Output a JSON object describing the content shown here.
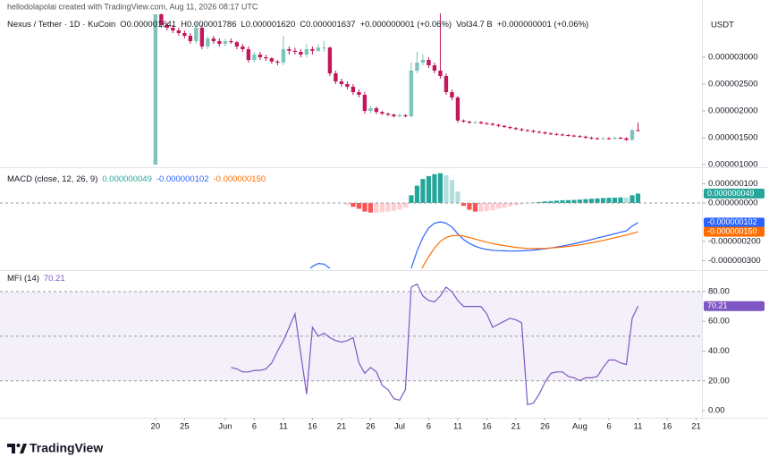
{
  "header": {
    "author_line": "hellodolapolai created with TradingView.com, Aug 11, 2026 08:17 UTC",
    "symbol": "Nexus / Tether · 1D · KuCoin",
    "ohlc": [
      "O0.000001641",
      "H0.000001786",
      "L0.000001620",
      "C0.000001637",
      "+0.000000001 (+0.06%)",
      "Vol34.7 B",
      "+0.000000001 (+0.06%)"
    ]
  },
  "brand": "TradingView",
  "chart_data": [
    {
      "type": "candlestick",
      "currency": "USDT",
      "xlim": [
        -25.2,
        94
      ],
      "xticks": [
        {
          "value": 0,
          "label": "20"
        },
        {
          "value": 5,
          "label": "25"
        },
        {
          "value": 12,
          "label": "Jun"
        },
        {
          "value": 17,
          "label": "6"
        },
        {
          "value": 22,
          "label": "11"
        },
        {
          "value": 27,
          "label": "16"
        },
        {
          "value": 32,
          "label": "21"
        },
        {
          "value": 37,
          "label": "26"
        },
        {
          "value": 42,
          "label": "Jul"
        },
        {
          "value": 47,
          "label": "6"
        },
        {
          "value": 52,
          "label": "11"
        },
        {
          "value": 57,
          "label": "16"
        },
        {
          "value": 62,
          "label": "21"
        },
        {
          "value": 67,
          "label": "26"
        },
        {
          "value": 73,
          "label": "Aug"
        },
        {
          "value": 78,
          "label": "6"
        },
        {
          "value": 83,
          "label": "11"
        },
        {
          "value": 88,
          "label": "16"
        },
        {
          "value": 93,
          "label": "21"
        }
      ],
      "ylim": [
        9.83e-07,
        3.817e-06
      ],
      "yticks": [
        {
          "value": 1e-06,
          "label": "0.000001000"
        },
        {
          "value": 1.5e-06,
          "label": "0.000001500"
        },
        {
          "value": 2e-06,
          "label": "0.000002000"
        },
        {
          "value": 2.5e-06,
          "label": "0.000002500"
        },
        {
          "value": 3e-06,
          "label": "0.000003000"
        }
      ],
      "up_color": "#7fc4bc",
      "down_color": "#c2185b",
      "open": [
        1e-06,
        3.8e-06,
        3.6e-06,
        3.55e-06,
        3.5e-06,
        3.45e-06,
        3.4e-06,
        3.3e-06,
        3.55e-06,
        3.2e-06,
        3.35e-06,
        3.3e-06,
        3.25e-06,
        3.3e-06,
        3.28e-06,
        3.2e-06,
        3.15e-06,
        2.95e-06,
        3.05e-06,
        3e-06,
        2.98e-06,
        2.92e-06,
        2.9e-06,
        3.15e-06,
        3.12e-06,
        3.1e-06,
        3.05e-06,
        3.15e-06,
        3.12e-06,
        3.18e-06,
        3.18e-06,
        2.7e-06,
        2.55e-06,
        2.5e-06,
        2.45e-06,
        2.35e-06,
        2.3e-06,
        2e-06,
        2.05e-06,
        1.98e-06,
        1.95e-06,
        1.93e-06,
        1.9e-06,
        1.92e-06,
        1.9e-06,
        2.75e-06,
        2.9e-06,
        2.95e-06,
        2.85e-06,
        2.75e-06,
        2.65e-06,
        2.35e-06,
        2.25e-06,
        1.82e-06,
        1.8e-06,
        1.78e-06,
        1.79e-06,
        1.77e-06,
        1.76e-06,
        1.74e-06,
        1.72e-06,
        1.7e-06,
        1.68e-06,
        1.66e-06,
        1.64e-06,
        1.63e-06,
        1.61e-06,
        1.6e-06,
        1.58e-06,
        1.57e-06,
        1.56e-06,
        1.55e-06,
        1.54e-06,
        1.53e-06,
        1.52e-06,
        1.5e-06,
        1.49e-06,
        1.48e-06,
        1.49e-06,
        1.48e-06,
        1.5e-06,
        1.49e-06,
        1.46e-06,
        1.641e-06
      ],
      "high": [
        3.8e-06,
        3.85e-06,
        3.65e-06,
        3.6e-06,
        3.55e-06,
        3.5e-06,
        3.45e-06,
        3.65e-06,
        3.6e-06,
        3.4e-06,
        3.4e-06,
        3.35e-06,
        3.35e-06,
        3.35e-06,
        3.3e-06,
        3.25e-06,
        3.2e-06,
        3.1e-06,
        3.1e-06,
        3.05e-06,
        3e-06,
        2.95e-06,
        3.4e-06,
        3.2e-06,
        3.18e-06,
        3.15e-06,
        3.25e-06,
        3.2e-06,
        3.25e-06,
        3.3e-06,
        3.2e-06,
        2.75e-06,
        2.6e-06,
        2.55e-06,
        2.5e-06,
        2.4e-06,
        2.35e-06,
        2.1e-06,
        2.08e-06,
        2e-06,
        1.97e-06,
        1.95e-06,
        1.95e-06,
        1.94e-06,
        2.9e-06,
        3.1e-06,
        3.05e-06,
        3e-06,
        2.9e-06,
        3.82e-06,
        2.7e-06,
        2.4e-06,
        2.28e-06,
        1.84e-06,
        1.82e-06,
        1.81e-06,
        1.81e-06,
        1.79e-06,
        1.78e-06,
        1.76e-06,
        1.74e-06,
        1.72e-06,
        1.7e-06,
        1.68e-06,
        1.66e-06,
        1.65e-06,
        1.63e-06,
        1.62e-06,
        1.6e-06,
        1.59e-06,
        1.58e-06,
        1.57e-06,
        1.56e-06,
        1.55e-06,
        1.54e-06,
        1.52e-06,
        1.51e-06,
        1.51e-06,
        1.51e-06,
        1.52e-06,
        1.52e-06,
        1.51e-06,
        1.66e-06,
        1.786e-06
      ],
      "low": [
        1e-06,
        3.55e-06,
        3.5e-06,
        3.45e-06,
        3.4e-06,
        3.35e-06,
        3.25e-06,
        3.25e-06,
        3.15e-06,
        3.15e-06,
        3.25e-06,
        3.2e-06,
        3.2e-06,
        3.25e-06,
        3.15e-06,
        3.1e-06,
        2.9e-06,
        2.9e-06,
        2.95e-06,
        2.93e-06,
        2.88e-06,
        2.85e-06,
        2.85e-06,
        3.05e-06,
        3.05e-06,
        3e-06,
        3e-06,
        3.05e-06,
        3.1e-06,
        3.1e-06,
        2.65e-06,
        2.5e-06,
        2.45e-06,
        2.4e-06,
        2.3e-06,
        2.25e-06,
        1.95e-06,
        1.95e-06,
        1.94e-06,
        1.92e-06,
        1.9e-06,
        1.88e-06,
        1.88e-06,
        1.88e-06,
        1.88e-06,
        2.7e-06,
        2.85e-06,
        2.8e-06,
        2.7e-06,
        2.6e-06,
        2.3e-06,
        2.2e-06,
        1.78e-06,
        1.78e-06,
        1.76e-06,
        1.76e-06,
        1.75e-06,
        1.74e-06,
        1.72e-06,
        1.7e-06,
        1.68e-06,
        1.66e-06,
        1.64e-06,
        1.62e-06,
        1.61e-06,
        1.59e-06,
        1.58e-06,
        1.56e-06,
        1.55e-06,
        1.54e-06,
        1.53e-06,
        1.52e-06,
        1.51e-06,
        1.5e-06,
        1.48e-06,
        1.47e-06,
        1.46e-06,
        1.46e-06,
        1.46e-06,
        1.46e-06,
        1.47e-06,
        1.44e-06,
        1.44e-06,
        1.62e-06
      ],
      "close": [
        3.8e-06,
        3.6e-06,
        3.55e-06,
        3.5e-06,
        3.45e-06,
        3.4e-06,
        3.3e-06,
        3.55e-06,
        3.2e-06,
        3.35e-06,
        3.3e-06,
        3.25e-06,
        3.3e-06,
        3.28e-06,
        3.2e-06,
        3.15e-06,
        2.95e-06,
        3.05e-06,
        3e-06,
        2.98e-06,
        2.92e-06,
        2.9e-06,
        3.15e-06,
        3.12e-06,
        3.1e-06,
        3.05e-06,
        3.15e-06,
        3.12e-06,
        3.18e-06,
        3.18e-06,
        2.7e-06,
        2.55e-06,
        2.5e-06,
        2.45e-06,
        2.35e-06,
        2.3e-06,
        2e-06,
        2.05e-06,
        1.98e-06,
        1.95e-06,
        1.93e-06,
        1.9e-06,
        1.92e-06,
        1.9e-06,
        2.75e-06,
        2.9e-06,
        2.95e-06,
        2.85e-06,
        2.75e-06,
        2.65e-06,
        2.35e-06,
        2.25e-06,
        1.82e-06,
        1.8e-06,
        1.78e-06,
        1.79e-06,
        1.77e-06,
        1.76e-06,
        1.74e-06,
        1.72e-06,
        1.7e-06,
        1.68e-06,
        1.66e-06,
        1.64e-06,
        1.63e-06,
        1.61e-06,
        1.6e-06,
        1.58e-06,
        1.57e-06,
        1.56e-06,
        1.55e-06,
        1.54e-06,
        1.53e-06,
        1.52e-06,
        1.5e-06,
        1.49e-06,
        1.48e-06,
        1.49e-06,
        1.48e-06,
        1.5e-06,
        1.49e-06,
        1.46e-06,
        1.641e-06,
        1.637e-06
      ]
    },
    {
      "type": "macd",
      "title": "MACD (close, 12, 26, 9)",
      "ylim": [
        -3.4e-07,
        1.72e-07
      ],
      "yticks": [
        {
          "value": 1e-07,
          "label": "0.000000100"
        },
        {
          "value": 0,
          "label": "0.000000000"
        },
        {
          "value": -2e-07,
          "label": "-0.000000200"
        },
        {
          "value": -3e-07,
          "label": "-0.000000300"
        }
      ],
      "histogram": {
        "colors": [
          "#26a69a",
          "#b2dfdb",
          "#ffcdd2",
          "#ff5252"
        ],
        "last_label": "0.000000049",
        "values": [
          null,
          null,
          null,
          null,
          null,
          null,
          null,
          null,
          null,
          null,
          null,
          null,
          null,
          null,
          null,
          null,
          null,
          null,
          null,
          null,
          null,
          null,
          null,
          null,
          null,
          null,
          null,
          null,
          null,
          null,
          null,
          null,
          null,
          -1e-08,
          -2e-08,
          -3e-08,
          -4.5e-08,
          -5e-08,
          -5e-08,
          -4.8e-08,
          -4.5e-08,
          -4e-08,
          -3.5e-08,
          -2.5e-08,
          4e-08,
          9e-08,
          1.25e-07,
          1.4e-07,
          1.5e-07,
          1.55e-07,
          1.45e-07,
          1.2e-07,
          6e-08,
          -1.5e-08,
          -3.5e-08,
          -4.5e-08,
          -4.5e-08,
          -4.2e-08,
          -3.8e-08,
          -3e-08,
          -2.5e-08,
          -1.8e-08,
          -1.2e-08,
          -6e-09,
          -2e-09,
          2e-09,
          5e-09,
          8e-09,
          1e-08,
          1.2e-08,
          1.4e-08,
          1.5e-08,
          1.6e-08,
          1.8e-08,
          2e-08,
          2.2e-08,
          2.4e-08,
          2.6e-08,
          2.7e-08,
          2.8e-08,
          2.9e-08,
          2.8e-08,
          4e-08,
          4.9e-08
        ]
      },
      "macd_line": {
        "color": "#2962ff",
        "last_label": "-0.000000102",
        "values": [
          null,
          null,
          null,
          null,
          null,
          null,
          null,
          null,
          null,
          null,
          null,
          null,
          null,
          null,
          null,
          null,
          null,
          null,
          null,
          null,
          null,
          null,
          null,
          null,
          null,
          -4e-07,
          -3.6e-07,
          -3.3e-07,
          -3.15e-07,
          -3.18e-07,
          -3.4e-07,
          -3.7e-07,
          -4e-07,
          -4.3e-07,
          -4.6e-07,
          -4.8e-07,
          -5.1e-07,
          -5.2e-07,
          -5.25e-07,
          -5.2e-07,
          -5.1e-07,
          -4.95e-07,
          -4.8e-07,
          -4.5e-07,
          -3.4e-07,
          -2.5e-07,
          -1.8e-07,
          -1.3e-07,
          -1.05e-07,
          -9.8e-08,
          -1.05e-07,
          -1.25e-07,
          -1.6e-07,
          -1.9e-07,
          -2.1e-07,
          -2.25e-07,
          -2.35e-07,
          -2.42e-07,
          -2.46e-07,
          -2.48e-07,
          -2.49e-07,
          -2.5e-07,
          -2.5e-07,
          -2.49e-07,
          -2.47e-07,
          -2.45e-07,
          -2.42e-07,
          -2.38e-07,
          -2.34e-07,
          -2.29e-07,
          -2.24e-07,
          -2.18e-07,
          -2.12e-07,
          -2.05e-07,
          -1.98e-07,
          -1.9e-07,
          -1.82e-07,
          -1.75e-07,
          -1.68e-07,
          -1.6e-07,
          -1.52e-07,
          -1.45e-07,
          -1.2e-07,
          -1.02e-07
        ]
      },
      "signal_line": {
        "color": "#ff6d00",
        "last_label": "-0.000000150",
        "values": [
          null,
          null,
          null,
          null,
          null,
          null,
          null,
          null,
          null,
          null,
          null,
          null,
          null,
          null,
          null,
          null,
          null,
          null,
          null,
          null,
          null,
          null,
          null,
          null,
          null,
          null,
          null,
          null,
          null,
          null,
          null,
          null,
          null,
          -4.2e-07,
          -4.4e-07,
          -4.55e-07,
          -4.7e-07,
          -4.8e-07,
          -4.88e-07,
          -4.92e-07,
          -4.92e-07,
          -4.9e-07,
          -4.85e-07,
          -4.75e-07,
          -4.4e-07,
          -3.9e-07,
          -3.3e-07,
          -2.8e-07,
          -2.35e-07,
          -2e-07,
          -1.8e-07,
          -1.7e-07,
          -1.68e-07,
          -1.72e-07,
          -1.8e-07,
          -1.88e-07,
          -1.96e-07,
          -2.04e-07,
          -2.11e-07,
          -2.17e-07,
          -2.22e-07,
          -2.27e-07,
          -2.31e-07,
          -2.34e-07,
          -2.36e-07,
          -2.37e-07,
          -2.37e-07,
          -2.36e-07,
          -2.34e-07,
          -2.32e-07,
          -2.29e-07,
          -2.26e-07,
          -2.22e-07,
          -2.18e-07,
          -2.13e-07,
          -2.07e-07,
          -2.01e-07,
          -1.95e-07,
          -1.88e-07,
          -1.81e-07,
          -1.74e-07,
          -1.67e-07,
          -1.58e-07,
          -1.5e-07
        ]
      }
    },
    {
      "type": "line",
      "title": "MFI (14)",
      "color": "#7e57c2",
      "last_label": "70.21",
      "ylim": [
        -3.6,
        92.6
      ],
      "yticks": [
        {
          "value": 0,
          "label": "0.00"
        },
        {
          "value": 20,
          "label": "20.00"
        },
        {
          "value": 40,
          "label": "40.00"
        },
        {
          "value": 60,
          "label": "60.00"
        },
        {
          "value": 80,
          "label": "80.00"
        }
      ],
      "bands": [
        20,
        50,
        80
      ],
      "values": [
        null,
        null,
        null,
        null,
        null,
        null,
        null,
        null,
        null,
        null,
        null,
        null,
        null,
        29,
        28,
        26,
        26,
        27,
        27,
        28,
        32,
        40,
        47,
        56,
        65,
        38,
        11,
        56,
        50,
        52,
        49,
        47,
        46,
        47,
        49,
        32,
        25,
        29,
        26,
        17,
        14,
        8,
        7,
        14,
        83,
        85,
        77,
        74,
        73,
        77,
        83,
        80,
        74,
        70,
        70,
        70,
        70,
        65,
        56,
        58,
        60,
        62,
        61,
        59,
        4,
        5,
        11,
        19,
        25,
        26,
        26,
        23,
        22,
        20,
        22,
        22,
        23,
        29,
        34,
        34,
        32,
        31,
        62,
        70.21
      ]
    }
  ]
}
